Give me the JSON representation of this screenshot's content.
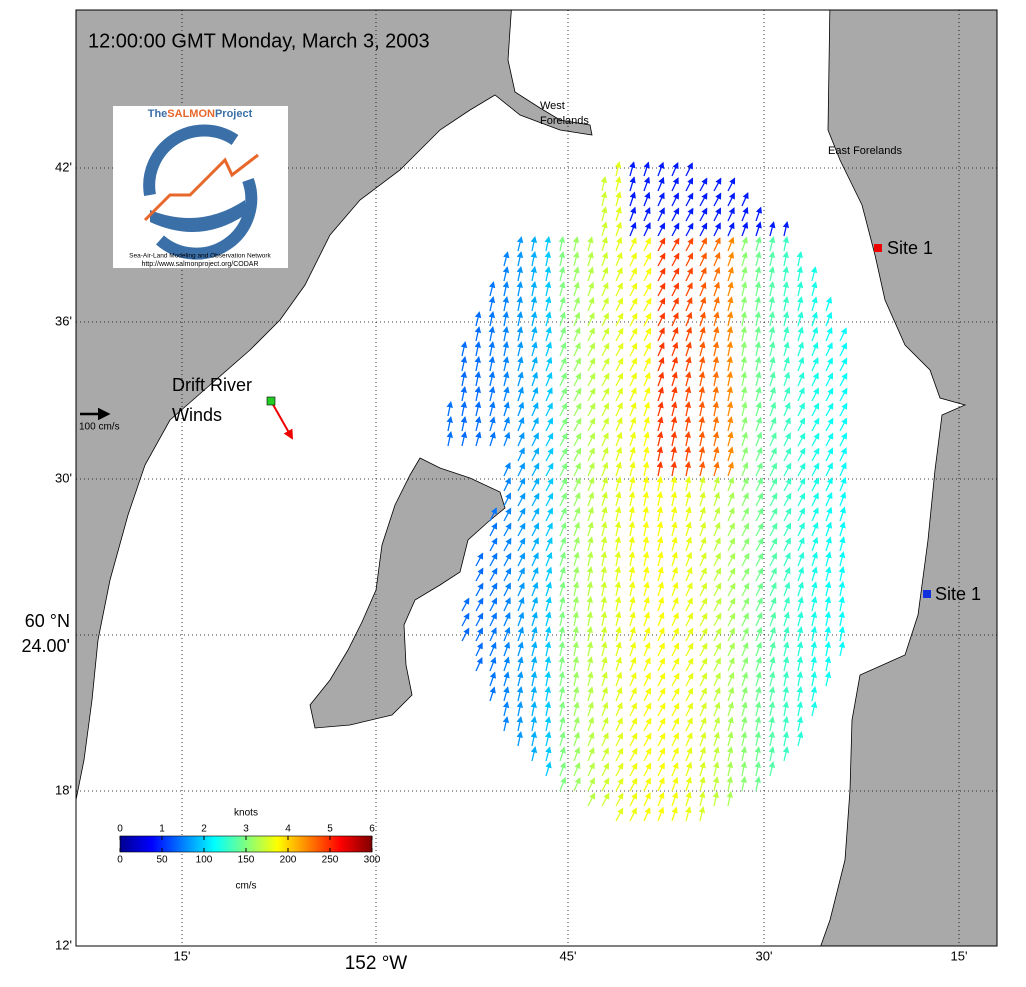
{
  "title": "12:00:00 GMT Monday, March 3, 2003",
  "logo": {
    "name_prefix": "The",
    "name_highlight": "SALMON",
    "name_suffix": "Project",
    "tagline": "Sea-Air-Land Modeling and Observation Network",
    "url": "http://www.salmonproject.org/CODAR"
  },
  "places": {
    "west_forelands": [
      "West",
      "Forelands"
    ],
    "east_forelands": "East Forelands",
    "site_north": "Site 1",
    "site_south": "Site 1",
    "drift_river": [
      "Drift River",
      "Winds"
    ],
    "scale_label": "100 cm/s"
  },
  "lat_ticks": [
    "42'",
    "36'",
    "30'",
    "18'",
    "12'"
  ],
  "lat_main": [
    "60 °N",
    "24.00'"
  ],
  "lon_ticks": [
    "15'",
    "152 °W",
    "45'",
    "30'",
    "15'"
  ],
  "colorbar": {
    "top_label": "knots",
    "bottom_label": "cm/s",
    "knots_lim": [
      0,
      6
    ],
    "knots_ticks": [
      0,
      1,
      2,
      3,
      4,
      5,
      6
    ],
    "cms_lim": [
      0,
      300
    ],
    "cms_ticks": [
      0,
      50,
      100,
      150,
      200,
      250,
      300
    ]
  }
}
